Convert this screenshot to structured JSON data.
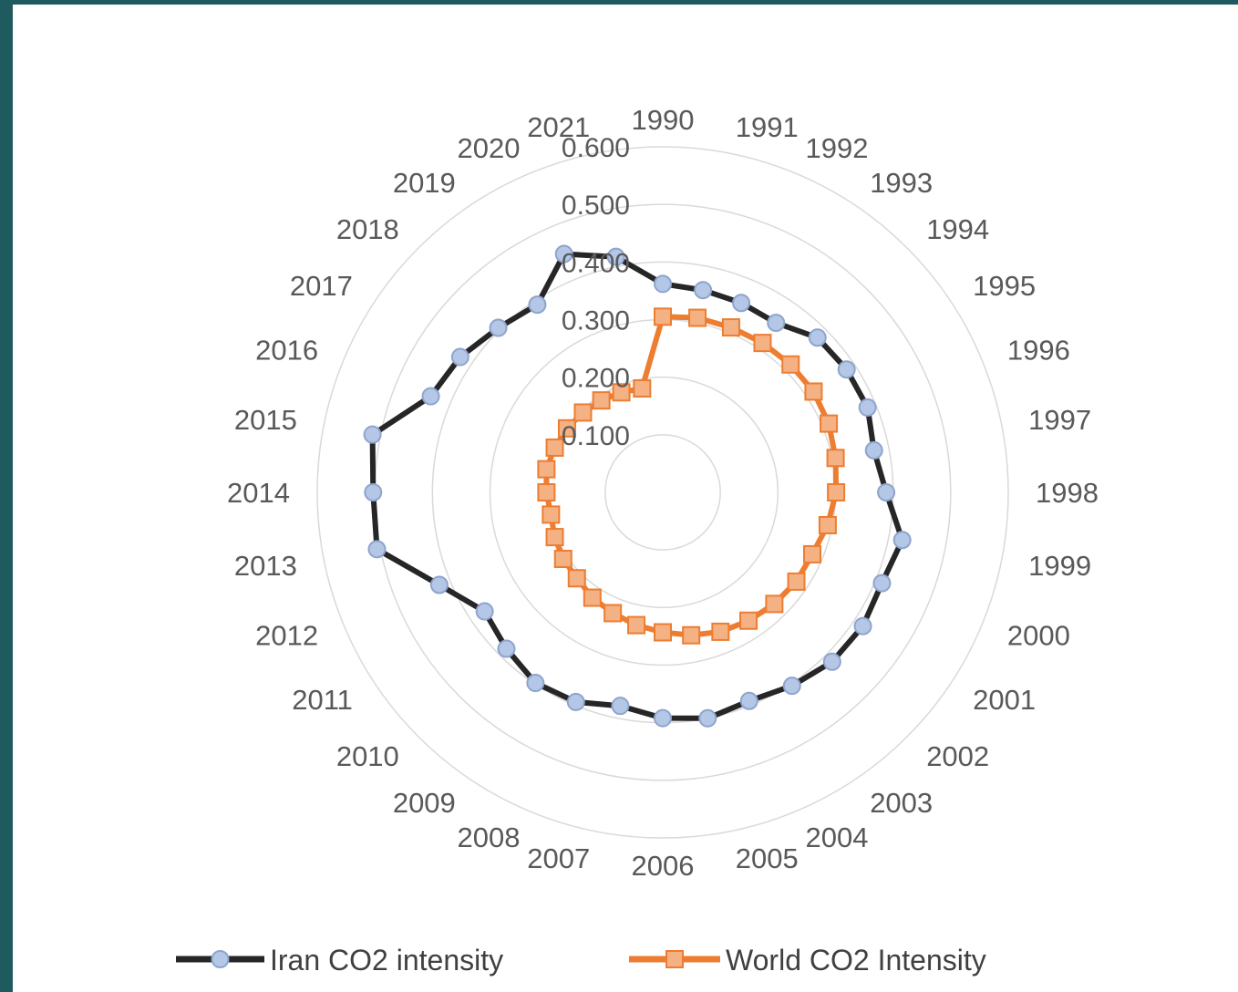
{
  "chart_data": {
    "type": "radar",
    "categories": [
      "1990",
      "1991",
      "1992",
      "1993",
      "1994",
      "1995",
      "1996",
      "1997",
      "1998",
      "1999",
      "2000",
      "2001",
      "2002",
      "2003",
      "2004",
      "2005",
      "2006",
      "2007",
      "2008",
      "2009",
      "2010",
      "2011",
      "2012",
      "2013",
      "2014",
      "2015",
      "2016",
      "2017",
      "2018",
      "2019",
      "2020",
      "2021"
    ],
    "axis": {
      "min": 0,
      "max": 0.6,
      "ticks": [
        0.1,
        0.2,
        0.3,
        0.4,
        0.5,
        0.6
      ],
      "tick_labels": [
        "0.100",
        "0.200",
        "0.300",
        "0.400",
        "0.500",
        "0.600"
      ],
      "gridlines": true
    },
    "series": [
      {
        "name": "Iran CO2 intensity",
        "color": "#262626",
        "marker": "circle",
        "marker_fill": "#b4c7e7",
        "marker_stroke": "#8ea4cc",
        "values": [
          0.362,
          0.358,
          0.356,
          0.354,
          0.38,
          0.384,
          0.385,
          0.374,
          0.388,
          0.424,
          0.412,
          0.418,
          0.416,
          0.404,
          0.392,
          0.4,
          0.392,
          0.378,
          0.394,
          0.398,
          0.384,
          0.372,
          0.42,
          0.506,
          0.503,
          0.514,
          0.436,
          0.423,
          0.404,
          0.392,
          0.448,
          0.417
        ]
      },
      {
        "name": "World CO2 Intensity",
        "color": "#ed7d31",
        "marker": "square",
        "marker_fill": "#f4b183",
        "marker_stroke": "#ed7d31",
        "values": [
          0.305,
          0.309,
          0.31,
          0.312,
          0.314,
          0.315,
          0.312,
          0.306,
          0.301,
          0.292,
          0.281,
          0.279,
          0.274,
          0.268,
          0.262,
          0.253,
          0.243,
          0.235,
          0.227,
          0.22,
          0.211,
          0.208,
          0.203,
          0.198,
          0.202,
          0.206,
          0.203,
          0.2,
          0.196,
          0.192,
          0.188,
          0.184
        ]
      }
    ],
    "legend": {
      "position": "bottom"
    }
  }
}
